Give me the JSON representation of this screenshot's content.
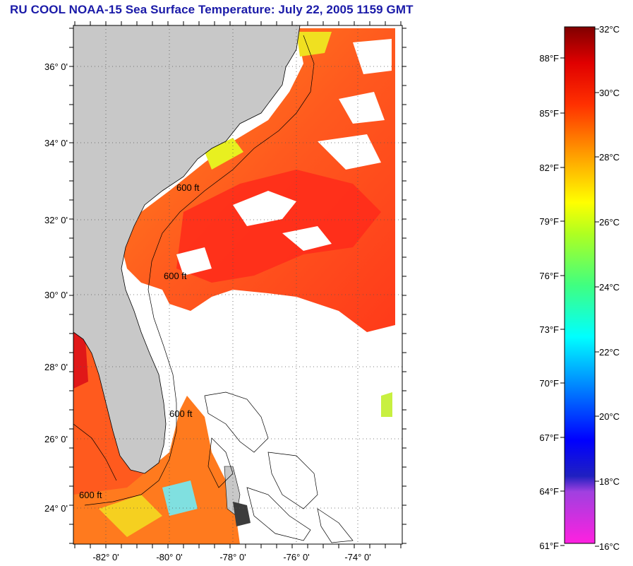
{
  "title": "RU COOL  NOAA-15  Sea Surface Temperature:  July 22, 2005 1159 GMT",
  "map": {
    "lat_labels": [
      "36° 0'",
      "34° 0'",
      "32° 0'",
      "30° 0'",
      "28° 0'",
      "26° 0'",
      "24° 0'"
    ],
    "lon_labels": [
      "-82° 0'",
      "-80° 0'",
      "-78° 0'",
      "-76° 0'",
      "-74° 0'"
    ],
    "contour_label": "600 ft",
    "colors": {
      "land": "#c8c8c8",
      "cloud": "#ffffff",
      "sst_warm": "#ff5a1e",
      "sst_hot": "#ff2020",
      "sst_orange": "#ff8a1e",
      "sst_yellow": "#f2f21a",
      "frame": "#000000"
    }
  },
  "colorbar": {
    "fahrenheit": [
      "88°F",
      "85°F",
      "82°F",
      "79°F",
      "76°F",
      "73°F",
      "70°F",
      "67°F",
      "64°F",
      "61°F"
    ],
    "celsius": [
      "32°C",
      "30°C",
      "28°C",
      "26°C",
      "24°C",
      "22°C",
      "20°C",
      "18°C",
      "16°C"
    ]
  }
}
